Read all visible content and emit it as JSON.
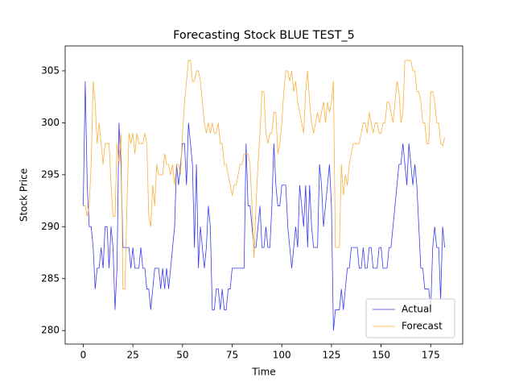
{
  "chart_data": {
    "type": "line",
    "title": "Forecasting Stock BLUE TEST_5",
    "x_label": "Time",
    "y_label": "Stock Price",
    "x": [
      0,
      1,
      2,
      3,
      4,
      5,
      6,
      7,
      8,
      9,
      10,
      11,
      12,
      13,
      14,
      15,
      16,
      17,
      18,
      19,
      20,
      21,
      22,
      23,
      24,
      25,
      26,
      27,
      28,
      29,
      30,
      31,
      32,
      33,
      34,
      35,
      36,
      37,
      38,
      39,
      40,
      41,
      42,
      43,
      44,
      45,
      46,
      47,
      48,
      49,
      50,
      51,
      52,
      53,
      54,
      55,
      56,
      57,
      58,
      59,
      60,
      61,
      62,
      63,
      64,
      65,
      66,
      67,
      68,
      69,
      70,
      71,
      72,
      73,
      74,
      75,
      76,
      77,
      78,
      79,
      80,
      81,
      82,
      83,
      84,
      85,
      86,
      87,
      88,
      89,
      90,
      91,
      92,
      93,
      94,
      95,
      96,
      97,
      98,
      99,
      100,
      101,
      102,
      103,
      104,
      105,
      106,
      107,
      108,
      109,
      110,
      111,
      112,
      113,
      114,
      115,
      116,
      117,
      118,
      119,
      120,
      121,
      122,
      123,
      124,
      125,
      126,
      127,
      128,
      129,
      130,
      131,
      132,
      133,
      134,
      135,
      136,
      137,
      138,
      139,
      140,
      141,
      142,
      143,
      144,
      145,
      146,
      147,
      148,
      149,
      150,
      151,
      152,
      153,
      154,
      155,
      156,
      157,
      158,
      159,
      160,
      161,
      162,
      163,
      164,
      165,
      166,
      167,
      168,
      169,
      170,
      171,
      172,
      173,
      174,
      175,
      176,
      177,
      178,
      179,
      180,
      181,
      182
    ],
    "series": [
      {
        "name": "Actual",
        "color": "#3a3aee",
        "values": [
          292,
          304,
          294,
          290,
          290,
          288,
          284,
          286,
          286,
          288,
          286,
          290,
          290,
          286,
          290,
          288,
          282,
          286,
          300,
          296,
          288,
          288,
          288,
          288,
          286,
          288,
          286,
          286,
          286,
          288,
          286,
          286,
          284,
          284,
          282,
          284,
          286,
          286,
          286,
          284,
          286,
          284,
          286,
          284,
          286,
          288,
          290,
          296,
          294,
          296,
          298,
          298,
          294,
          300,
          298,
          296,
          288,
          296,
          286,
          290,
          288,
          286,
          288,
          292,
          290,
          282,
          282,
          284,
          284,
          282,
          284,
          282,
          282,
          284,
          284,
          286,
          286,
          286,
          286,
          286,
          286,
          286,
          298,
          292,
          292,
          290,
          288,
          288,
          290,
          292,
          288,
          288,
          290,
          288,
          288,
          292,
          298,
          294,
          292,
          292,
          294,
          294,
          294,
          290,
          288,
          286,
          288,
          290,
          288,
          294,
          292,
          290,
          294,
          288,
          294,
          290,
          288,
          288,
          288,
          296,
          294,
          290,
          292,
          294,
          296,
          292,
          280,
          282,
          282,
          282,
          284,
          282,
          284,
          286,
          286,
          288,
          288,
          288,
          288,
          286,
          286,
          288,
          286,
          286,
          288,
          288,
          286,
          286,
          286,
          288,
          288,
          286,
          286,
          286,
          288,
          288,
          290,
          292,
          294,
          296,
          296,
          298,
          296,
          294,
          298,
          296,
          294,
          296,
          294,
          290,
          286,
          286,
          284,
          284,
          284,
          282,
          288,
          290,
          288,
          288,
          283,
          290,
          288
        ]
      },
      {
        "name": "Forecast",
        "color": "#fbb03b",
        "values": [
          292,
          292,
          291,
          292,
          296,
          304,
          302,
          298,
          300,
          298,
          296,
          298,
          298,
          298,
          294,
          291,
          291,
          298,
          296,
          299,
          284,
          284,
          292,
          299,
          298,
          299,
          297,
          299,
          298,
          298,
          298,
          299,
          298,
          291,
          290,
          294,
          292,
          296,
          295,
          295,
          295,
          297,
          296,
          296,
          295,
          296,
          294,
          296,
          296,
          295,
          299,
          302,
          304,
          306,
          306,
          304,
          304,
          305,
          305,
          304,
          302,
          300,
          299,
          300,
          299,
          300,
          299,
          299,
          300,
          298,
          298,
          296,
          296,
          295,
          294,
          293,
          294,
          294,
          295,
          296,
          296,
          297,
          297,
          297,
          296,
          292,
          287,
          292,
          296,
          299,
          303,
          303,
          299,
          298,
          299,
          299,
          301,
          301,
          297,
          298,
          300,
          303,
          305,
          305,
          304,
          305,
          303,
          304,
          302,
          301,
          300,
          299,
          303,
          305,
          302,
          300,
          299,
          300,
          301,
          300,
          301,
          302,
          300,
          302,
          301,
          302,
          304,
          288,
          288,
          288,
          296,
          293,
          295,
          294,
          296,
          297,
          298,
          298,
          298,
          298,
          299,
          300,
          300,
          299,
          301,
          300,
          299,
          300,
          300,
          299,
          299,
          300,
          300,
          302,
          302,
          301,
          300,
          302,
          304,
          303,
          300,
          301,
          306,
          306,
          306,
          306,
          305,
          305,
          303,
          303,
          302,
          300,
          300,
          298,
          298,
          303,
          303,
          302,
          300,
          300,
          298,
          297.8,
          298.6
        ]
      }
    ],
    "xlim": [
      -9.1,
      191.1
    ],
    "xticks": [
      0,
      25,
      50,
      75,
      100,
      125,
      150,
      175
    ],
    "ylim": [
      278.7,
      307.4
    ],
    "yticks": [
      280,
      285,
      290,
      295,
      300,
      305
    ],
    "legend": "lower right"
  }
}
